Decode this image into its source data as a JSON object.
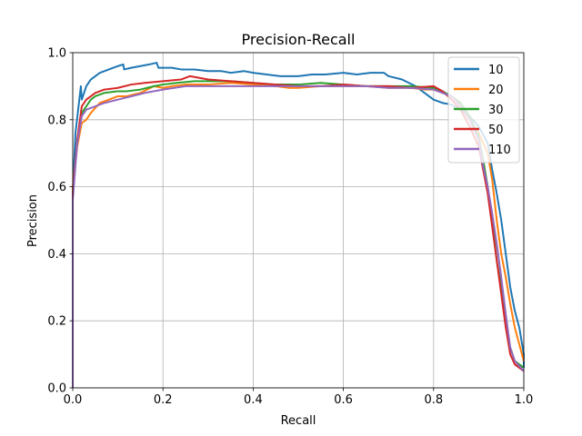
{
  "chart_data": {
    "type": "line",
    "title": "Precision-Recall",
    "xlabel": "Recall",
    "ylabel": "Precision",
    "xlim": [
      0.0,
      1.0
    ],
    "ylim": [
      0.0,
      1.0
    ],
    "xticks": [
      "0.0",
      "0.2",
      "0.4",
      "0.6",
      "0.8",
      "1.0"
    ],
    "yticks": [
      "0.0",
      "0.2",
      "0.4",
      "0.6",
      "0.8",
      "1.0"
    ],
    "grid": true,
    "legend_position": "top-right",
    "series": [
      {
        "name": "10",
        "color": "#1f77b4",
        "points": [
          [
            0.0,
            0.0
          ],
          [
            0.0,
            0.58
          ],
          [
            0.006,
            0.76
          ],
          [
            0.012,
            0.83
          ],
          [
            0.018,
            0.9
          ],
          [
            0.02,
            0.86
          ],
          [
            0.03,
            0.9
          ],
          [
            0.04,
            0.92
          ],
          [
            0.06,
            0.94
          ],
          [
            0.08,
            0.95
          ],
          [
            0.1,
            0.96
          ],
          [
            0.112,
            0.965
          ],
          [
            0.114,
            0.95
          ],
          [
            0.13,
            0.955
          ],
          [
            0.15,
            0.96
          ],
          [
            0.17,
            0.965
          ],
          [
            0.186,
            0.97
          ],
          [
            0.19,
            0.955
          ],
          [
            0.22,
            0.955
          ],
          [
            0.24,
            0.95
          ],
          [
            0.27,
            0.95
          ],
          [
            0.3,
            0.945
          ],
          [
            0.33,
            0.945
          ],
          [
            0.35,
            0.94
          ],
          [
            0.38,
            0.945
          ],
          [
            0.4,
            0.94
          ],
          [
            0.43,
            0.935
          ],
          [
            0.46,
            0.93
          ],
          [
            0.5,
            0.93
          ],
          [
            0.53,
            0.935
          ],
          [
            0.56,
            0.935
          ],
          [
            0.6,
            0.94
          ],
          [
            0.63,
            0.935
          ],
          [
            0.66,
            0.94
          ],
          [
            0.69,
            0.94
          ],
          [
            0.7,
            0.93
          ],
          [
            0.73,
            0.92
          ],
          [
            0.76,
            0.9
          ],
          [
            0.78,
            0.88
          ],
          [
            0.8,
            0.86
          ],
          [
            0.82,
            0.85
          ],
          [
            0.84,
            0.845
          ],
          [
            0.86,
            0.83
          ],
          [
            0.88,
            0.81
          ],
          [
            0.9,
            0.78
          ],
          [
            0.92,
            0.73
          ],
          [
            0.93,
            0.65
          ],
          [
            0.94,
            0.58
          ],
          [
            0.95,
            0.5
          ],
          [
            0.96,
            0.4
          ],
          [
            0.97,
            0.3
          ],
          [
            0.98,
            0.23
          ],
          [
            0.99,
            0.18
          ],
          [
            1.0,
            0.1
          ],
          [
            1.0,
            0.06
          ]
        ]
      },
      {
        "name": "20",
        "color": "#ff7f0e",
        "points": [
          [
            0.0,
            0.0
          ],
          [
            0.0,
            0.6
          ],
          [
            0.01,
            0.72
          ],
          [
            0.02,
            0.79
          ],
          [
            0.03,
            0.8
          ],
          [
            0.04,
            0.82
          ],
          [
            0.06,
            0.85
          ],
          [
            0.08,
            0.86
          ],
          [
            0.1,
            0.87
          ],
          [
            0.12,
            0.87
          ],
          [
            0.15,
            0.88
          ],
          [
            0.18,
            0.9
          ],
          [
            0.2,
            0.895
          ],
          [
            0.22,
            0.9
          ],
          [
            0.25,
            0.905
          ],
          [
            0.3,
            0.905
          ],
          [
            0.35,
            0.91
          ],
          [
            0.4,
            0.905
          ],
          [
            0.45,
            0.9
          ],
          [
            0.48,
            0.895
          ],
          [
            0.5,
            0.895
          ],
          [
            0.55,
            0.9
          ],
          [
            0.6,
            0.9
          ],
          [
            0.65,
            0.9
          ],
          [
            0.7,
            0.895
          ],
          [
            0.75,
            0.895
          ],
          [
            0.78,
            0.89
          ],
          [
            0.8,
            0.89
          ],
          [
            0.82,
            0.88
          ],
          [
            0.84,
            0.87
          ],
          [
            0.86,
            0.84
          ],
          [
            0.88,
            0.8
          ],
          [
            0.9,
            0.76
          ],
          [
            0.92,
            0.7
          ],
          [
            0.93,
            0.62
          ],
          [
            0.94,
            0.5
          ],
          [
            0.95,
            0.4
          ],
          [
            0.96,
            0.33
          ],
          [
            0.97,
            0.25
          ],
          [
            0.98,
            0.18
          ],
          [
            0.99,
            0.13
          ],
          [
            1.0,
            0.08
          ]
        ]
      },
      {
        "name": "30",
        "color": "#2ca02c",
        "points": [
          [
            0.0,
            0.0
          ],
          [
            0.0,
            0.58
          ],
          [
            0.01,
            0.74
          ],
          [
            0.02,
            0.82
          ],
          [
            0.03,
            0.84
          ],
          [
            0.04,
            0.86
          ],
          [
            0.05,
            0.87
          ],
          [
            0.07,
            0.88
          ],
          [
            0.1,
            0.885
          ],
          [
            0.12,
            0.885
          ],
          [
            0.15,
            0.89
          ],
          [
            0.18,
            0.9
          ],
          [
            0.2,
            0.905
          ],
          [
            0.23,
            0.91
          ],
          [
            0.27,
            0.915
          ],
          [
            0.3,
            0.915
          ],
          [
            0.35,
            0.915
          ],
          [
            0.4,
            0.91
          ],
          [
            0.45,
            0.905
          ],
          [
            0.5,
            0.905
          ],
          [
            0.55,
            0.91
          ],
          [
            0.6,
            0.905
          ],
          [
            0.65,
            0.9
          ],
          [
            0.7,
            0.9
          ],
          [
            0.75,
            0.9
          ],
          [
            0.8,
            0.895
          ],
          [
            0.82,
            0.885
          ],
          [
            0.84,
            0.87
          ],
          [
            0.86,
            0.85
          ],
          [
            0.88,
            0.81
          ],
          [
            0.9,
            0.75
          ],
          [
            0.91,
            0.68
          ],
          [
            0.92,
            0.6
          ],
          [
            0.93,
            0.5
          ],
          [
            0.94,
            0.38
          ],
          [
            0.95,
            0.3
          ],
          [
            0.96,
            0.2
          ],
          [
            0.97,
            0.12
          ],
          [
            0.98,
            0.08
          ],
          [
            1.0,
            0.06
          ]
        ]
      },
      {
        "name": "50",
        "color": "#d62728",
        "points": [
          [
            0.0,
            0.0
          ],
          [
            0.0,
            0.58
          ],
          [
            0.01,
            0.74
          ],
          [
            0.02,
            0.84
          ],
          [
            0.03,
            0.86
          ],
          [
            0.05,
            0.88
          ],
          [
            0.07,
            0.89
          ],
          [
            0.1,
            0.895
          ],
          [
            0.13,
            0.905
          ],
          [
            0.16,
            0.91
          ],
          [
            0.2,
            0.915
          ],
          [
            0.24,
            0.92
          ],
          [
            0.26,
            0.93
          ],
          [
            0.3,
            0.92
          ],
          [
            0.35,
            0.915
          ],
          [
            0.4,
            0.91
          ],
          [
            0.45,
            0.905
          ],
          [
            0.5,
            0.9
          ],
          [
            0.55,
            0.9
          ],
          [
            0.6,
            0.905
          ],
          [
            0.65,
            0.9
          ],
          [
            0.7,
            0.9
          ],
          [
            0.75,
            0.895
          ],
          [
            0.8,
            0.9
          ],
          [
            0.82,
            0.885
          ],
          [
            0.84,
            0.86
          ],
          [
            0.86,
            0.83
          ],
          [
            0.88,
            0.78
          ],
          [
            0.9,
            0.72
          ],
          [
            0.91,
            0.65
          ],
          [
            0.92,
            0.58
          ],
          [
            0.93,
            0.48
          ],
          [
            0.94,
            0.38
          ],
          [
            0.95,
            0.28
          ],
          [
            0.96,
            0.18
          ],
          [
            0.97,
            0.1
          ],
          [
            0.98,
            0.07
          ],
          [
            1.0,
            0.05
          ]
        ]
      },
      {
        "name": "110",
        "color": "#9467bd",
        "points": [
          [
            0.0,
            0.0
          ],
          [
            0.0,
            0.56
          ],
          [
            0.01,
            0.73
          ],
          [
            0.02,
            0.81
          ],
          [
            0.03,
            0.83
          ],
          [
            0.05,
            0.84
          ],
          [
            0.07,
            0.85
          ],
          [
            0.1,
            0.86
          ],
          [
            0.13,
            0.87
          ],
          [
            0.16,
            0.88
          ],
          [
            0.2,
            0.89
          ],
          [
            0.25,
            0.9
          ],
          [
            0.3,
            0.9
          ],
          [
            0.35,
            0.9
          ],
          [
            0.4,
            0.9
          ],
          [
            0.45,
            0.9
          ],
          [
            0.5,
            0.9
          ],
          [
            0.55,
            0.9
          ],
          [
            0.6,
            0.9
          ],
          [
            0.65,
            0.9
          ],
          [
            0.7,
            0.895
          ],
          [
            0.75,
            0.895
          ],
          [
            0.8,
            0.89
          ],
          [
            0.82,
            0.88
          ],
          [
            0.84,
            0.87
          ],
          [
            0.86,
            0.84
          ],
          [
            0.88,
            0.8
          ],
          [
            0.9,
            0.74
          ],
          [
            0.91,
            0.66
          ],
          [
            0.92,
            0.6
          ],
          [
            0.93,
            0.52
          ],
          [
            0.94,
            0.43
          ],
          [
            0.95,
            0.33
          ],
          [
            0.96,
            0.22
          ],
          [
            0.97,
            0.12
          ],
          [
            0.98,
            0.08
          ],
          [
            1.0,
            0.05
          ]
        ]
      }
    ]
  }
}
